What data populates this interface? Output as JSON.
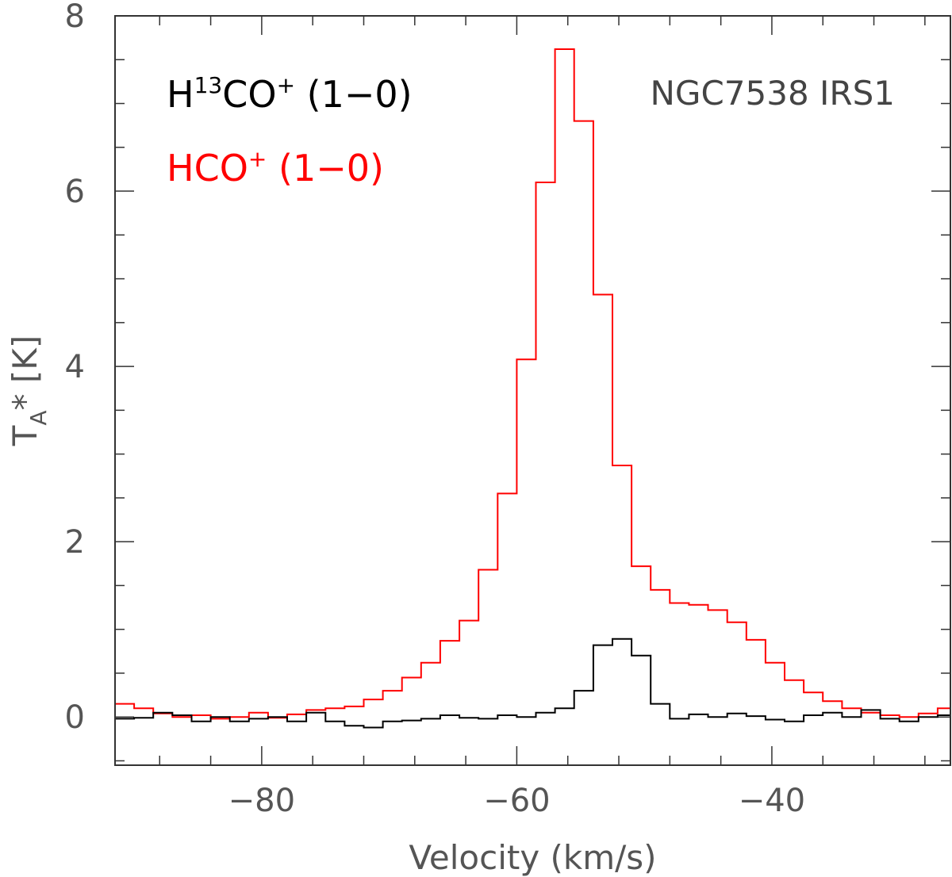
{
  "chart_data": {
    "type": "line",
    "step": true,
    "title": "",
    "xlabel": "Velocity (km/s)",
    "ylabel": {
      "main": "T",
      "sub": "A",
      "rest": "* [K]"
    },
    "xlim": [
      -91.5,
      -26
    ],
    "ylim": [
      -0.55,
      8
    ],
    "x_major_ticks": [
      -80,
      -60,
      -40
    ],
    "x_tick_labels": [
      "−80",
      "−60",
      "−40"
    ],
    "x_minor_step": 4,
    "y_major_ticks": [
      0,
      2,
      4,
      6,
      8
    ],
    "y_tick_labels": [
      "0",
      "2",
      "4",
      "6",
      "8"
    ],
    "y_minor_step": 0.5,
    "annotation": "NGC7538 IRS1",
    "legend": [
      {
        "series": "H13CO+",
        "parts": [
          {
            "t": "H"
          },
          {
            "t": "13",
            "sup": true
          },
          {
            "t": "CO"
          },
          {
            "t": "+",
            "sup": true
          },
          {
            "t": " (1−0)"
          }
        ],
        "color": "#000000"
      },
      {
        "series": "HCO+",
        "parts": [
          {
            "t": "HCO"
          },
          {
            "t": "+",
            "sup": true
          },
          {
            "t": " (1−0)"
          }
        ],
        "color": "#ff0000"
      }
    ],
    "series": [
      {
        "name": "HCO+ (1-0)",
        "color": "#ff0000",
        "bin_edges": [
          -91.5,
          -90,
          -88.5,
          -87,
          -85.5,
          -84,
          -82.5,
          -81,
          -79.5,
          -78,
          -76.5,
          -75,
          -73.5,
          -72,
          -70.5,
          -69,
          -67.5,
          -66,
          -64.5,
          -63,
          -61.5,
          -60,
          -58.5,
          -57,
          -55.5,
          -54,
          -52.5,
          -51,
          -49.5,
          -48,
          -46.5,
          -45,
          -43.5,
          -42,
          -40.5,
          -39,
          -37.5,
          -36,
          -34.5,
          -33,
          -31.5,
          -30,
          -28.5,
          -27,
          -26
        ],
        "values": [
          0.15,
          0.1,
          0.04,
          0.0,
          0.02,
          -0.02,
          0.0,
          0.05,
          -0.01,
          0.03,
          0.08,
          0.1,
          0.12,
          0.2,
          0.3,
          0.45,
          0.62,
          0.87,
          1.1,
          1.68,
          2.55,
          4.08,
          6.1,
          7.62,
          6.8,
          4.82,
          2.87,
          1.72,
          1.45,
          1.3,
          1.28,
          1.22,
          1.08,
          0.88,
          0.62,
          0.42,
          0.28,
          0.18,
          0.1,
          0.05,
          0.02,
          0.0,
          0.04,
          0.1
        ]
      },
      {
        "name": "H13CO+ (1-0)",
        "color": "#000000",
        "bin_edges": [
          -91.5,
          -90,
          -88.5,
          -87,
          -85.5,
          -84,
          -82.5,
          -81,
          -79.5,
          -78,
          -76.5,
          -75,
          -73.5,
          -72,
          -70.5,
          -69,
          -67.5,
          -66,
          -64.5,
          -63,
          -61.5,
          -60,
          -58.5,
          -57,
          -55.5,
          -54,
          -52.5,
          -51,
          -49.5,
          -48,
          -46.5,
          -45,
          -43.5,
          -42,
          -40.5,
          -39,
          -37.5,
          -36,
          -34.5,
          -33,
          -31.5,
          -30,
          -28.5,
          -27,
          -26
        ],
        "values": [
          -0.02,
          -0.01,
          0.05,
          0.02,
          -0.05,
          0.0,
          -0.05,
          -0.02,
          0.0,
          -0.05,
          0.05,
          -0.05,
          -0.1,
          -0.12,
          -0.05,
          -0.04,
          -0.02,
          0.02,
          -0.01,
          -0.02,
          0.02,
          0.0,
          0.05,
          0.1,
          0.3,
          0.82,
          0.89,
          0.7,
          0.15,
          -0.02,
          0.03,
          0.0,
          0.04,
          0.01,
          -0.03,
          -0.05,
          0.02,
          0.05,
          0.0,
          0.08,
          -0.02,
          -0.05,
          0.0,
          0.02
        ]
      }
    ]
  }
}
